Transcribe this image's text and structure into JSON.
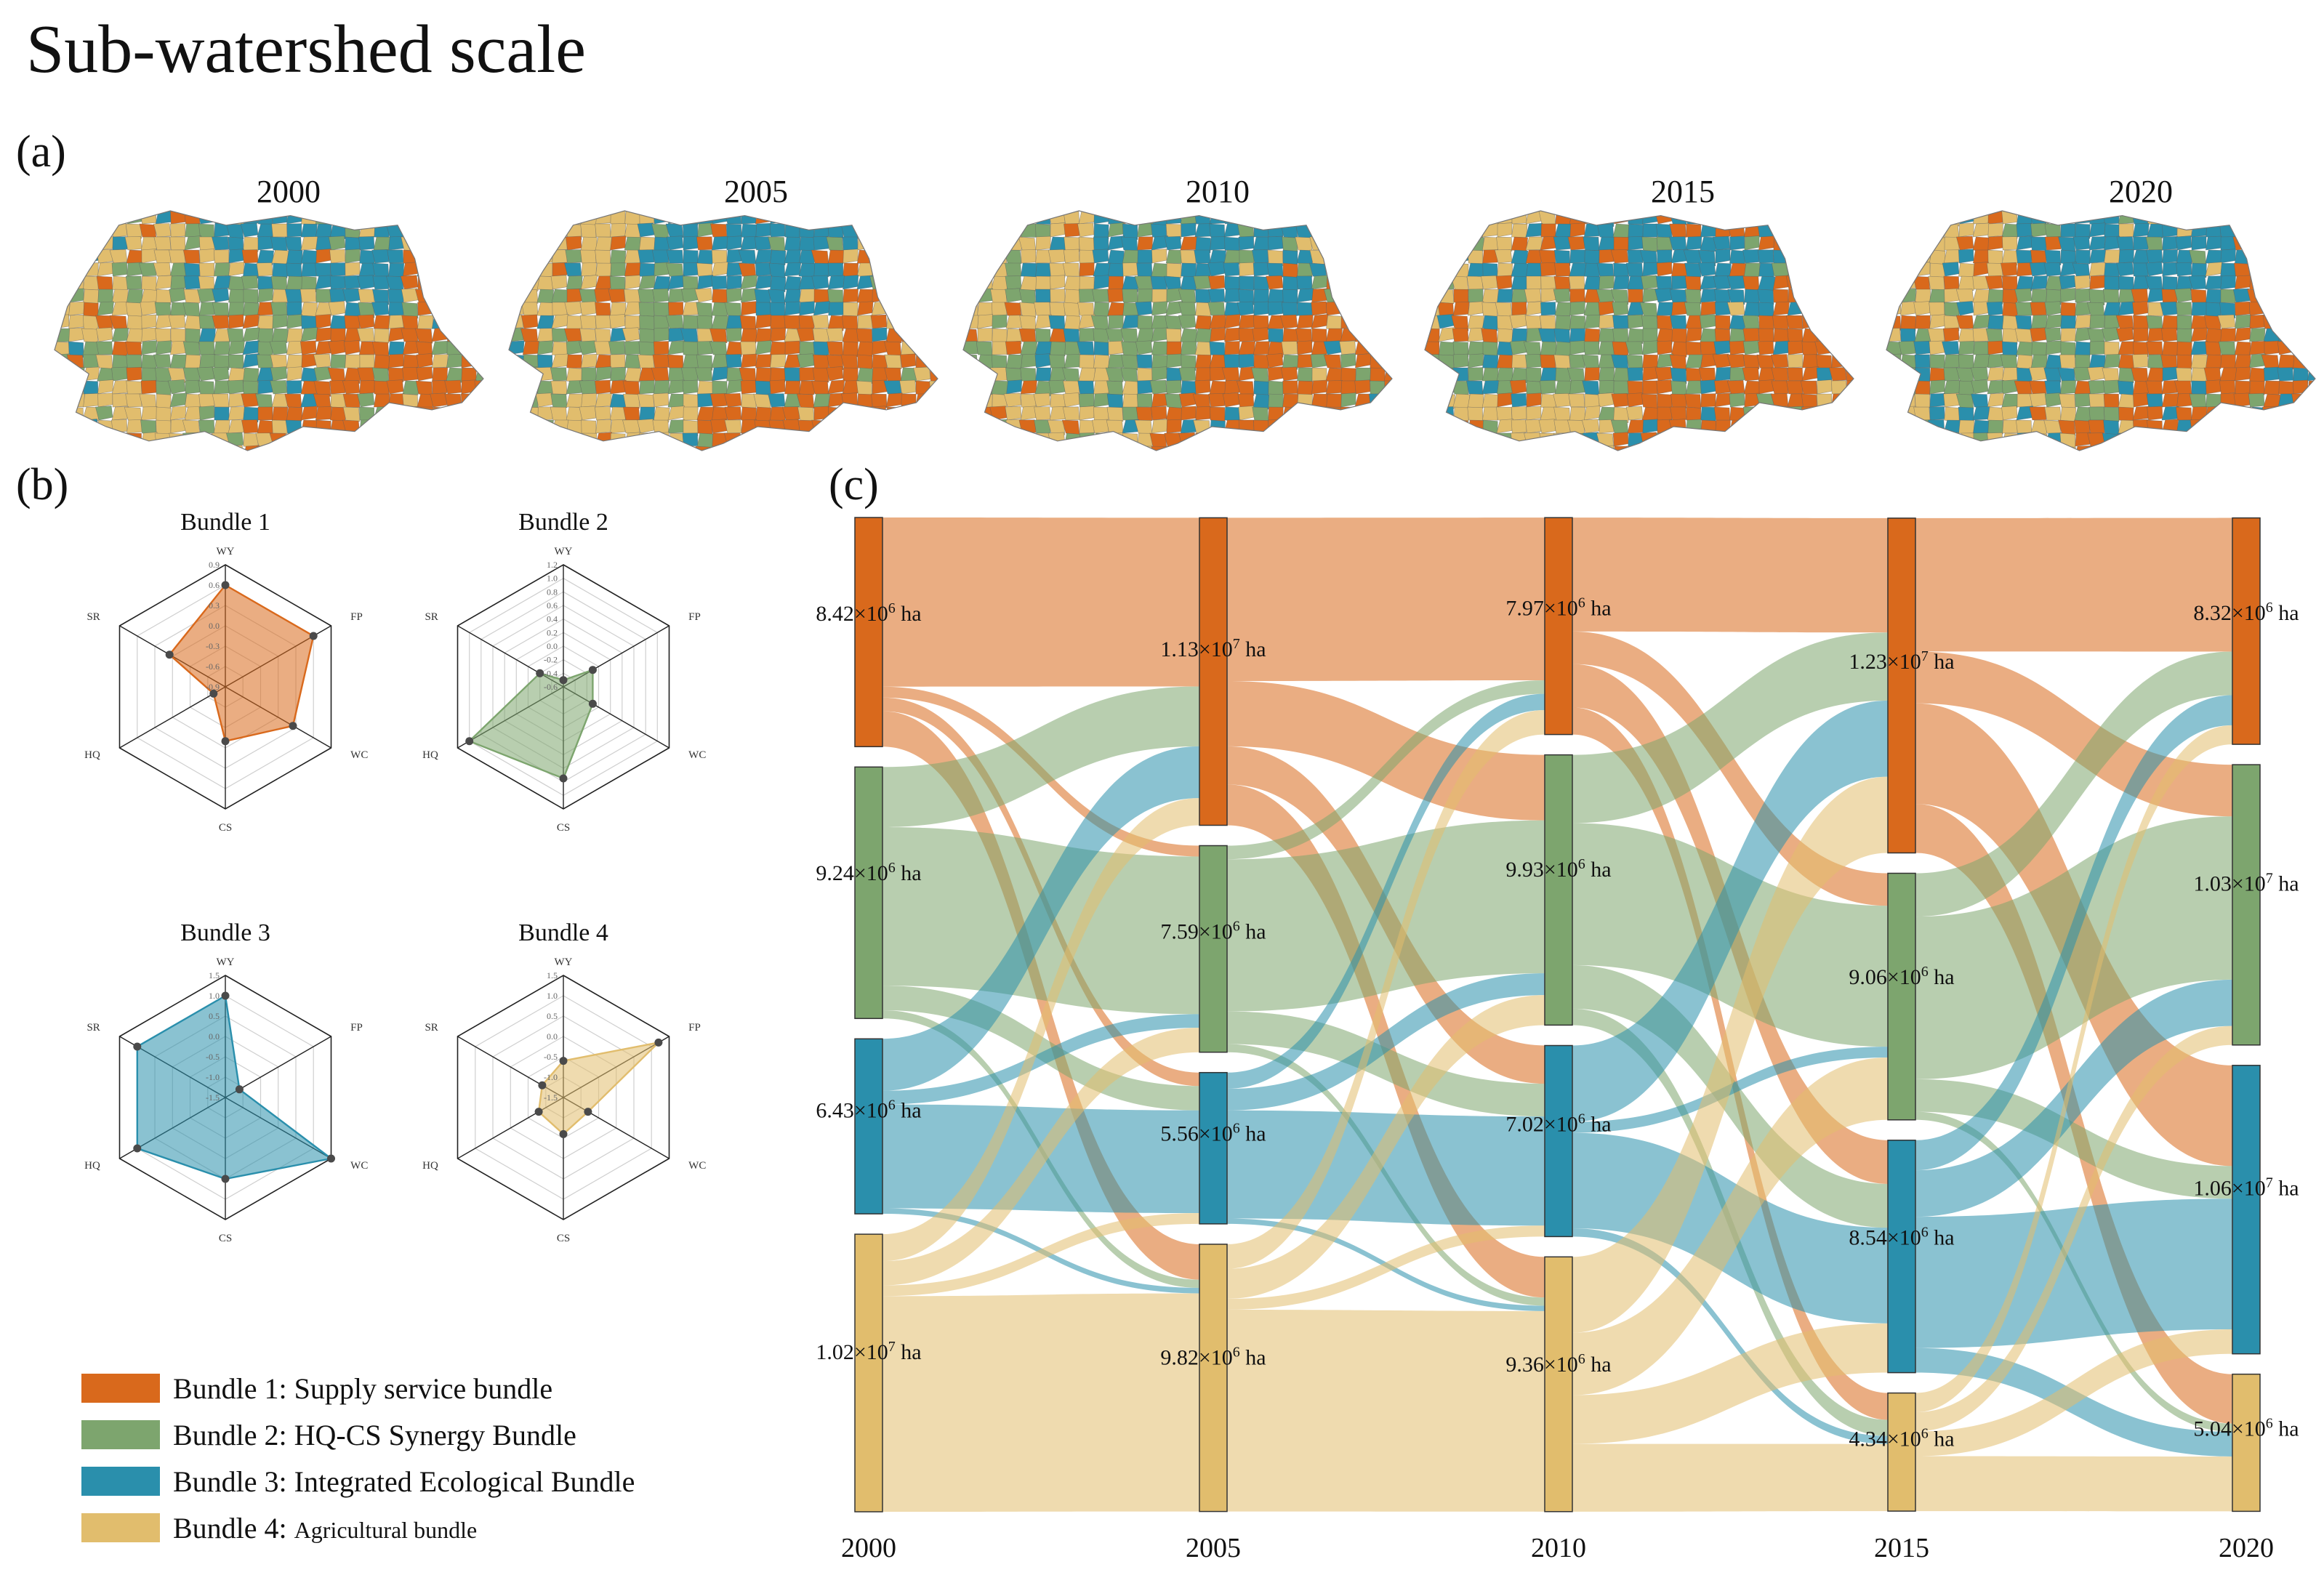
{
  "title": "Sub-watershed scale",
  "panels": {
    "a": "(a)",
    "b": "(b)",
    "c": "(c)"
  },
  "colors": {
    "b1": "#d9691c",
    "b2": "#7da56e",
    "b3": "#2a8fac",
    "b4": "#e1bd6d"
  },
  "maps": {
    "years": [
      "2000",
      "2005",
      "2010",
      "2015",
      "2020"
    ],
    "dominant_shares": [
      {
        "b1": 0.18,
        "b2": 0.27,
        "b3": 0.2,
        "b4": 0.35
      },
      {
        "b1": 0.26,
        "b2": 0.24,
        "b3": 0.2,
        "b4": 0.3
      },
      {
        "b1": 0.21,
        "b2": 0.34,
        "b3": 0.2,
        "b4": 0.25
      },
      {
        "b1": 0.34,
        "b2": 0.27,
        "b3": 0.26,
        "b4": 0.13
      },
      {
        "b1": 0.24,
        "b2": 0.3,
        "b3": 0.3,
        "b4": 0.16
      }
    ]
  },
  "legend": [
    {
      "main": "Bundle 1: Supply service bundle",
      "small": "",
      "color": "#d9691c"
    },
    {
      "main": "Bundle 2: HQ-CS Synergy Bundle",
      "small": "",
      "color": "#7da56e"
    },
    {
      "main": "Bundle 3: Integrated Ecological Bundle",
      "small": "",
      "color": "#2a8fac"
    },
    {
      "main": "Bundle 4: ",
      "small": "Agricultural bundle",
      "color": "#e1bd6d"
    }
  ],
  "chart_data": [
    {
      "type": "radar",
      "title": "Bundle 1",
      "axes": [
        "WY",
        "FP",
        "WC",
        "CS",
        "HQ",
        "SR"
      ],
      "ticks": [
        "0.9",
        "0.6",
        "0.3",
        "0.0",
        "-0.3",
        "-0.6",
        "-0.9"
      ],
      "rlim": [
        -0.9,
        0.9
      ],
      "values": [
        0.6,
        0.6,
        0.25,
        -0.1,
        -0.7,
        0.05
      ],
      "color": "#d9691c"
    },
    {
      "type": "radar",
      "title": "Bundle 2",
      "axes": [
        "WY",
        "FP",
        "WC",
        "CS",
        "HQ",
        "SR"
      ],
      "ticks": [
        "1.2",
        "1.0",
        "0.8",
        "0.6",
        "0.4",
        "0.2",
        "0.0",
        "-0.2",
        "-0.4",
        "-0.6"
      ],
      "rlim": [
        -0.6,
        1.2
      ],
      "values": [
        -0.5,
        -0.1,
        -0.1,
        0.75,
        1.0,
        -0.2
      ],
      "color": "#7da56e"
    },
    {
      "type": "radar",
      "title": "Bundle 3",
      "axes": [
        "WY",
        "FP",
        "WC",
        "CS",
        "HQ",
        "SR"
      ],
      "ticks": [
        "1.5",
        "1.0",
        "0.5",
        "0.0",
        "-0.5",
        "-1.0",
        "-1.5"
      ],
      "rlim": [
        -1.5,
        1.5
      ],
      "values": [
        1.0,
        -1.1,
        1.5,
        0.5,
        1.0,
        1.0
      ],
      "color": "#2a8fac"
    },
    {
      "type": "radar",
      "title": "Bundle 4",
      "axes": [
        "WY",
        "FP",
        "WC",
        "CS",
        "HQ",
        "SR"
      ],
      "ticks": [
        "1.5",
        "1.0",
        "0.5",
        "0.0",
        "-0.5",
        "-1.0",
        "-1.5"
      ],
      "rlim": [
        -1.5,
        1.5
      ],
      "values": [
        -0.6,
        1.2,
        -0.8,
        -0.6,
        -0.8,
        -0.9
      ],
      "color": "#e1bd6d"
    },
    {
      "type": "sankey",
      "unit": "ha",
      "columns": [
        "2000",
        "2005",
        "2010",
        "2015",
        "2020"
      ],
      "nodes": [
        [
          {
            "bundle": 1,
            "label": "8.42×10",
            "exp": "6",
            "suffix": " ha",
            "value": 8420000
          },
          {
            "bundle": 2,
            "label": "9.24×10",
            "exp": "6",
            "suffix": " ha",
            "value": 9240000
          },
          {
            "bundle": 3,
            "label": "6.43×10",
            "exp": "6",
            "suffix": " ha",
            "value": 6430000
          },
          {
            "bundle": 4,
            "label": "1.02×10",
            "exp": "7",
            "suffix": " ha",
            "value": 10200000
          }
        ],
        [
          {
            "bundle": 1,
            "label": "1.13×10",
            "exp": "7",
            "suffix": " ha",
            "value": 11300000
          },
          {
            "bundle": 2,
            "label": "7.59×10",
            "exp": "6",
            "suffix": " ha",
            "value": 7590000
          },
          {
            "bundle": 3,
            "label": "5.56×10",
            "exp": "6",
            "suffix": " ha",
            "value": 5560000
          },
          {
            "bundle": 4,
            "label": "9.82×10",
            "exp": "6",
            "suffix": " ha",
            "value": 9820000
          }
        ],
        [
          {
            "bundle": 1,
            "label": "7.97×10",
            "exp": "6",
            "suffix": " ha",
            "value": 7970000
          },
          {
            "bundle": 2,
            "label": "9.93×10",
            "exp": "6",
            "suffix": " ha",
            "value": 9930000
          },
          {
            "bundle": 3,
            "label": "7.02×10",
            "exp": "6",
            "suffix": " ha",
            "value": 7020000
          },
          {
            "bundle": 4,
            "label": "9.36×10",
            "exp": "6",
            "suffix": " ha",
            "value": 9360000
          }
        ],
        [
          {
            "bundle": 1,
            "label": "1.23×10",
            "exp": "7",
            "suffix": " ha",
            "value": 12300000
          },
          {
            "bundle": 2,
            "label": "9.06×10",
            "exp": "6",
            "suffix": " ha",
            "value": 9060000
          },
          {
            "bundle": 3,
            "label": "8.54×10",
            "exp": "6",
            "suffix": " ha",
            "value": 8540000
          },
          {
            "bundle": 4,
            "label": "4.34×10",
            "exp": "6",
            "suffix": " ha",
            "value": 4340000
          }
        ],
        [
          {
            "bundle": 1,
            "label": "8.32×10",
            "exp": "6",
            "suffix": " ha",
            "value": 8320000
          },
          {
            "bundle": 2,
            "label": "1.03×10",
            "exp": "7",
            "suffix": " ha",
            "value": 10300000
          },
          {
            "bundle": 3,
            "label": "1.06×10",
            "exp": "7",
            "suffix": " ha",
            "value": 10600000
          },
          {
            "bundle": 4,
            "label": "5.04×10",
            "exp": "6",
            "suffix": " ha",
            "value": 5040000
          }
        ]
      ],
      "flows": [
        [
          [
            6.2,
            0.4,
            0.5,
            1.3
          ],
          [
            2.2,
            5.8,
            0.9,
            0.3
          ],
          [
            1.9,
            0.5,
            3.8,
            0.2
          ],
          [
            1.0,
            0.9,
            0.4,
            8.0
          ]
        ],
        [
          [
            6.0,
            2.4,
            1.4,
            1.5
          ],
          [
            0.5,
            5.6,
            1.2,
            0.3
          ],
          [
            0.6,
            0.8,
            4.0,
            0.2
          ],
          [
            0.9,
            1.1,
            0.4,
            7.4
          ]
        ],
        [
          [
            4.2,
            1.2,
            1.6,
            1.0
          ],
          [
            2.5,
            5.2,
            1.6,
            0.6
          ],
          [
            2.8,
            0.4,
            3.5,
            0.3
          ],
          [
            2.8,
            2.3,
            1.8,
            2.5
          ]
        ],
        [
          [
            4.9,
            1.9,
            3.7,
            1.8
          ],
          [
            1.6,
            6.0,
            1.2,
            0.3
          ],
          [
            1.1,
            1.7,
            4.8,
            0.9
          ],
          [
            0.7,
            0.7,
            0.9,
            2.0
          ]
        ]
      ]
    }
  ]
}
